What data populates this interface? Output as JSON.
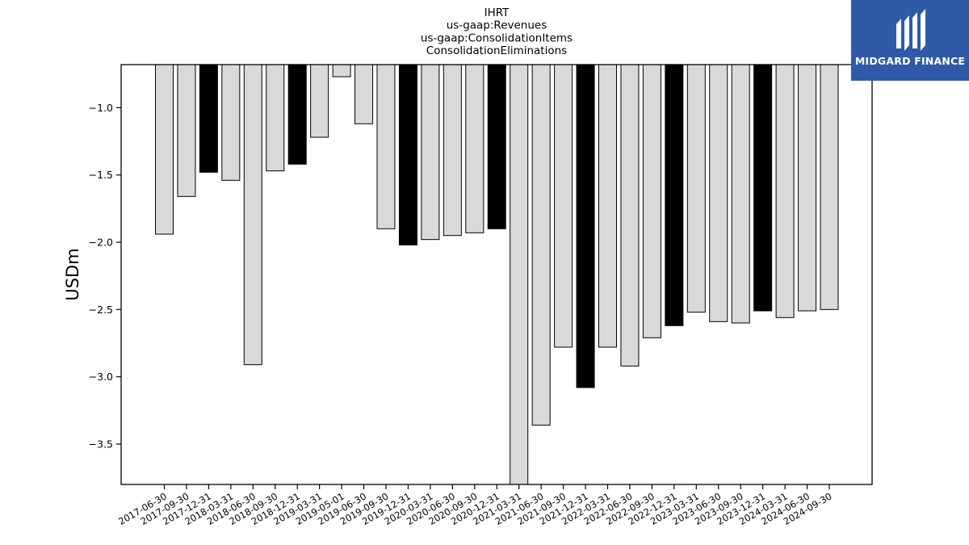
{
  "chart_data": {
    "type": "bar",
    "title_lines": [
      "IHRT",
      "us-gaap:Revenues",
      "us-gaap:ConsolidationItems",
      "ConsolidationEliminations"
    ],
    "ylabel": "USDm",
    "xlabel": "",
    "ylim": [
      -3.8,
      -0.68
    ],
    "yticks": [
      -1.0,
      -1.5,
      -2.0,
      -2.5,
      -3.0,
      -3.5
    ],
    "grid": false,
    "categories": [
      "2017-06-30",
      "2017-09-30",
      "2017-12-31",
      "2018-03-31",
      "2018-06-30",
      "2018-09-30",
      "2018-12-31",
      "2019-03-31",
      "2019-05-01",
      "2019-06-30",
      "2019-09-30",
      "2019-12-31",
      "2020-03-31",
      "2020-06-30",
      "2020-09-30",
      "2020-12-31",
      "2021-03-31",
      "2021-06-30",
      "2021-09-30",
      "2021-12-31",
      "2022-03-31",
      "2022-06-30",
      "2022-09-30",
      "2022-12-31",
      "2023-03-31",
      "2023-06-30",
      "2023-09-30",
      "2023-12-31",
      "2024-03-31",
      "2024-06-30",
      "2024-09-30"
    ],
    "values": [
      -1.94,
      -1.66,
      -1.48,
      -1.54,
      -2.91,
      -1.47,
      -1.42,
      -1.22,
      -0.77,
      -1.12,
      -1.9,
      -2.02,
      -1.98,
      -1.95,
      -1.93,
      -1.9,
      -3.8,
      -3.36,
      -2.78,
      -3.08,
      -2.78,
      -2.92,
      -2.71,
      -2.62,
      -2.52,
      -2.59,
      -2.6,
      -2.51,
      -2.56,
      -2.51,
      -2.5
    ],
    "highlight_indices": [
      2,
      6,
      11,
      15,
      19,
      23,
      27
    ],
    "colors": {
      "normal_fill": "#d9d9d9",
      "highlight_fill": "#000000",
      "edge": "#000000"
    }
  },
  "logo": {
    "text": "MIDGARD FINANCE",
    "background": "#2f5aa8"
  }
}
